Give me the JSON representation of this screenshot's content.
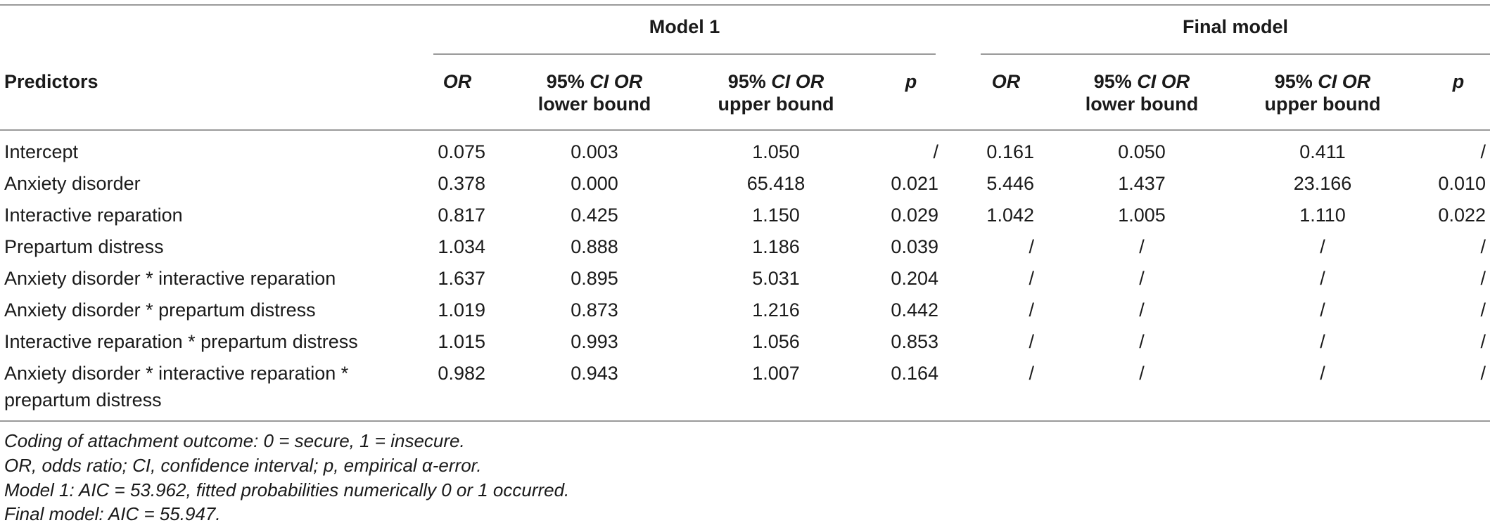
{
  "table": {
    "group_headers": [
      "Model 1",
      "Final model"
    ],
    "predictors_header": "Predictors",
    "sub_headers": {
      "or": "OR",
      "ci_prefix": "95% ",
      "ci_ital": "CI OR",
      "lower": "lower bound",
      "upper": "upper bound",
      "p": "p"
    },
    "rows": [
      {
        "label": [
          "Intercept"
        ],
        "m1": [
          "0.075",
          "0.003",
          "1.050",
          "/"
        ],
        "fm": [
          "0.161",
          "0.050",
          "0.411",
          "/"
        ]
      },
      {
        "label": [
          "Anxiety disorder"
        ],
        "m1": [
          "0.378",
          "0.000",
          "65.418",
          "0.021"
        ],
        "fm": [
          "5.446",
          "1.437",
          "23.166",
          "0.010"
        ]
      },
      {
        "label": [
          "Interactive reparation"
        ],
        "m1": [
          "0.817",
          "0.425",
          "1.150",
          "0.029"
        ],
        "fm": [
          "1.042",
          "1.005",
          "1.110",
          "0.022"
        ]
      },
      {
        "label": [
          "Prepartum distress"
        ],
        "m1": [
          "1.034",
          "0.888",
          "1.186",
          "0.039"
        ],
        "fm": [
          "/",
          "/",
          "/",
          "/"
        ]
      },
      {
        "label": [
          "Anxiety disorder * interactive reparation"
        ],
        "m1": [
          "1.637",
          "0.895",
          "5.031",
          "0.204"
        ],
        "fm": [
          "/",
          "/",
          "/",
          "/"
        ]
      },
      {
        "label": [
          "Anxiety disorder * prepartum distress"
        ],
        "m1": [
          "1.019",
          "0.873",
          "1.216",
          "0.442"
        ],
        "fm": [
          "/",
          "/",
          "/",
          "/"
        ]
      },
      {
        "label": [
          "Interactive reparation * prepartum distress"
        ],
        "m1": [
          "1.015",
          "0.993",
          "1.056",
          "0.853"
        ],
        "fm": [
          "/",
          "/",
          "/",
          "/"
        ]
      },
      {
        "label": [
          "Anxiety disorder * interactive reparation *",
          "prepartum distress"
        ],
        "m1": [
          "0.982",
          "0.943",
          "1.007",
          "0.164"
        ],
        "fm": [
          "/",
          "/",
          "/",
          "/"
        ]
      }
    ]
  },
  "footnotes": [
    "Coding of attachment outcome: 0 = secure, 1 = insecure.",
    "OR, odds ratio; CI, confidence interval; p, empirical α-error.",
    "Model 1: AIC = 53.962, fitted probabilities numerically 0 or 1 occurred.",
    "Final model: AIC = 55.947."
  ]
}
